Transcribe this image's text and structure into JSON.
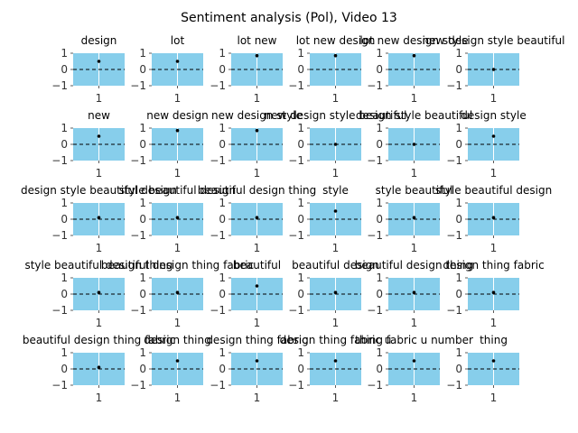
{
  "title": "Sentiment analysis (Pol), Video 13",
  "chart_data": {
    "type": "scatter",
    "title": "Sentiment analysis (Pol), Video 13",
    "grid_rows": 5,
    "grid_cols": 6,
    "x_ticks": [
      "1"
    ],
    "y_ticks": [
      "1",
      "0",
      "−1"
    ],
    "xlim": [
      0.5,
      1.5
    ],
    "ylim": [
      -1,
      1
    ],
    "reference_line": 0,
    "grid": true,
    "colors": {
      "panel_bg": "#87ceeb",
      "point": "#000000",
      "ref_line": "#000000",
      "grid": "#ffffff"
    },
    "panels": [
      {
        "title": "design",
        "x": 1,
        "y": 0.5
      },
      {
        "title": "lot",
        "x": 1,
        "y": 0.5
      },
      {
        "title": "lot new",
        "x": 1,
        "y": 0.85
      },
      {
        "title": "lot new design",
        "x": 1,
        "y": 0.85
      },
      {
        "title": "lot new design style",
        "x": 1,
        "y": 0.85
      },
      {
        "title": "new design style beautiful",
        "x": 1,
        "y": 0.0
      },
      {
        "title": "new",
        "x": 1,
        "y": 0.5
      },
      {
        "title": "new design",
        "x": 1,
        "y": 0.85
      },
      {
        "title": "new design style",
        "x": 1,
        "y": 0.85
      },
      {
        "title": "new design style beautiful",
        "x": 1,
        "y": 0.0
      },
      {
        "title": "design style beautiful",
        "x": 1,
        "y": 0.0
      },
      {
        "title": "design style",
        "x": 1,
        "y": 0.5
      },
      {
        "title": "design style beautiful design",
        "x": 1,
        "y": 0.1
      },
      {
        "title": "style beautiful design",
        "x": 1,
        "y": 0.1
      },
      {
        "title": "beautiful design thing",
        "x": 1,
        "y": 0.1
      },
      {
        "title": "style",
        "x": 1,
        "y": 0.5
      },
      {
        "title": "style beautiful",
        "x": 1,
        "y": 0.1
      },
      {
        "title": "style beautiful design",
        "x": 1,
        "y": 0.1
      },
      {
        "title": "style beautiful design thing",
        "x": 1,
        "y": 0.1
      },
      {
        "title": "beautiful design thing fabric",
        "x": 1,
        "y": 0.1
      },
      {
        "title": "beautiful",
        "x": 1,
        "y": 0.5
      },
      {
        "title": "beautiful design",
        "x": 1,
        "y": 0.1
      },
      {
        "title": "beautiful design thing",
        "x": 1,
        "y": 0.1
      },
      {
        "title": "design thing fabric",
        "x": 1,
        "y": 0.1
      },
      {
        "title": "beautiful design thing fabric",
        "x": 1,
        "y": 0.1
      },
      {
        "title": "design thing",
        "x": 1,
        "y": 0.5
      },
      {
        "title": "design thing fabric",
        "x": 1,
        "y": 0.5
      },
      {
        "title": "design thing fabric u",
        "x": 1,
        "y": 0.5
      },
      {
        "title": "thing fabric u number",
        "x": 1,
        "y": 0.5
      },
      {
        "title": "thing",
        "x": 1,
        "y": 0.5
      }
    ]
  }
}
